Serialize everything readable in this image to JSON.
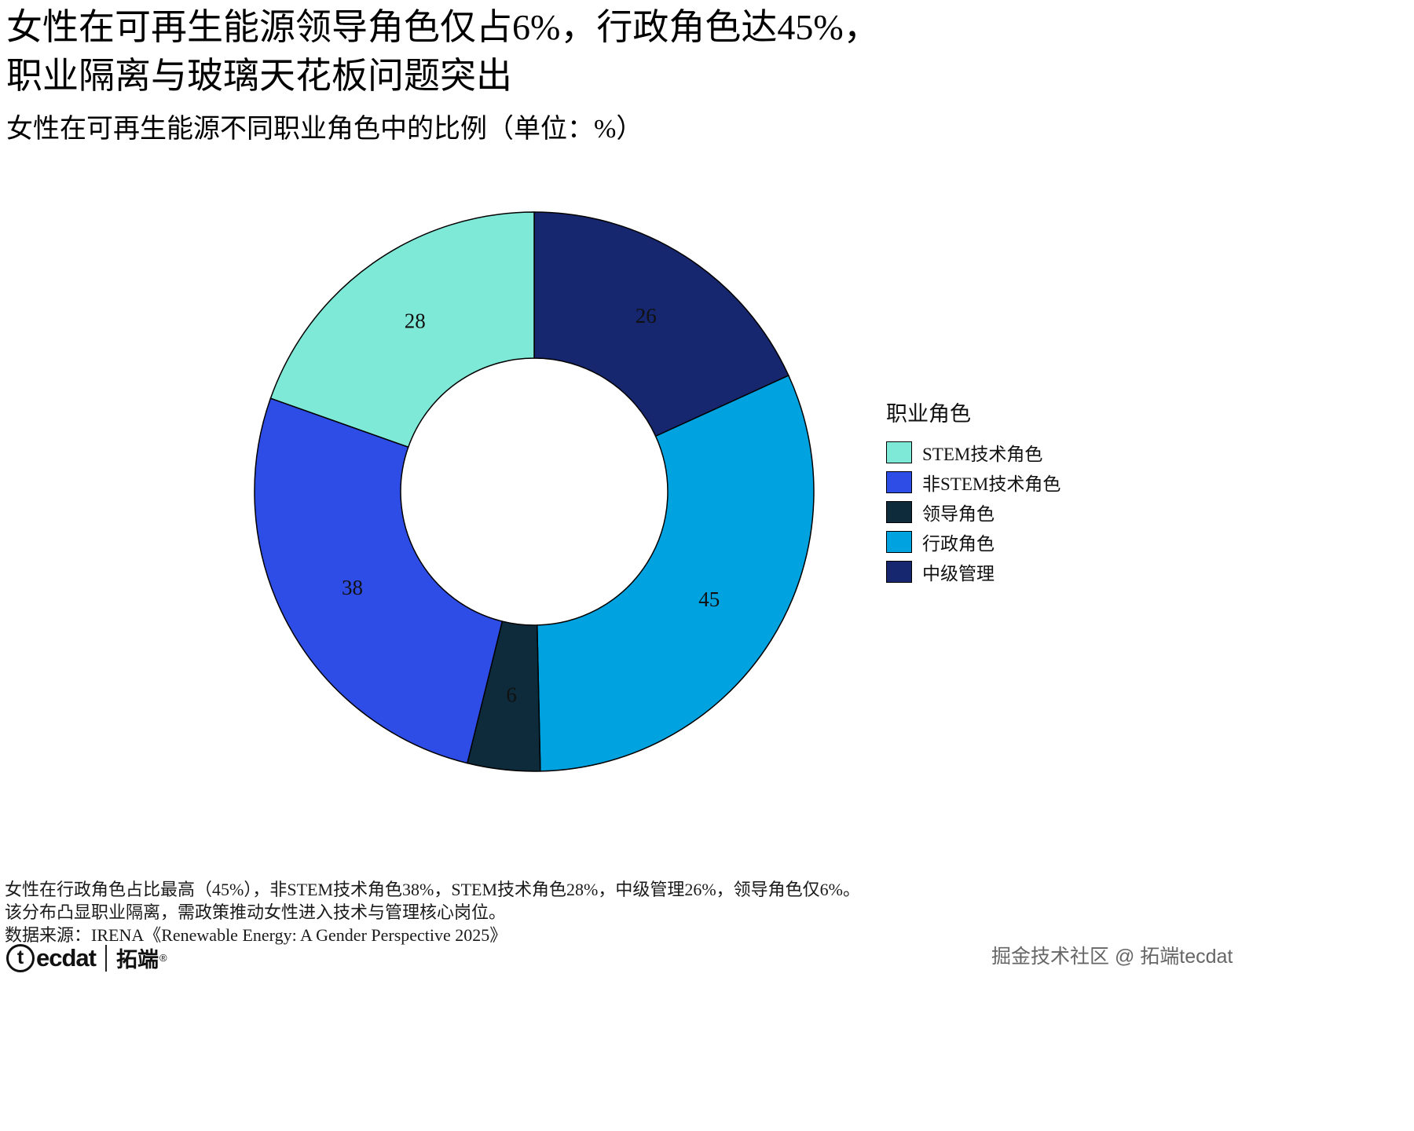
{
  "header": {
    "title_line1": "女性在可再生能源领导角色仅占6%，行政角色达45%，",
    "title_line2": "职业隔离与玻璃天花板问题突出",
    "subtitle": "女性在可再生能源不同职业角色中的比例（单位：%）"
  },
  "chart_data": {
    "type": "pie",
    "variant": "donut",
    "unit": "%",
    "title": "女性在可再生能源不同职业角色中的比例（单位：%）",
    "order": "clockwise-from-top",
    "segments": [
      {
        "label": "中级管理",
        "value": 26,
        "color": "#16266f"
      },
      {
        "label": "行政角色",
        "value": 45,
        "color": "#01a2e0"
      },
      {
        "label": "领导角色",
        "value": 6,
        "color": "#0d2b3a"
      },
      {
        "label": "非STEM技术角色",
        "value": 38,
        "color": "#2e4ce6"
      },
      {
        "label": "STEM技术角色",
        "value": 28,
        "color": "#7fe9d8"
      }
    ],
    "legend": {
      "title": "职业角色",
      "position": "right",
      "items": [
        "STEM技术角色",
        "非STEM技术角色",
        "领导角色",
        "行政角色",
        "中级管理"
      ]
    }
  },
  "annotations": [
    "女性在行政角色占比最高（45%），非STEM技术角色38%，STEM技术角色28%，中级管理26%，领导角色仅6%。",
    "该分布凸显职业隔离，需政策推动女性进入技术与管理核心岗位。",
    "数据来源：IRENA《Renewable Energy: A Gender Perspective 2025》"
  ],
  "branding": {
    "logo_initial": "t",
    "logo_rest": "ecdat",
    "logo_cn": "拓端",
    "logo_reg": "®",
    "watermark": "掘金技术社区 @ 拓端tecdat"
  }
}
